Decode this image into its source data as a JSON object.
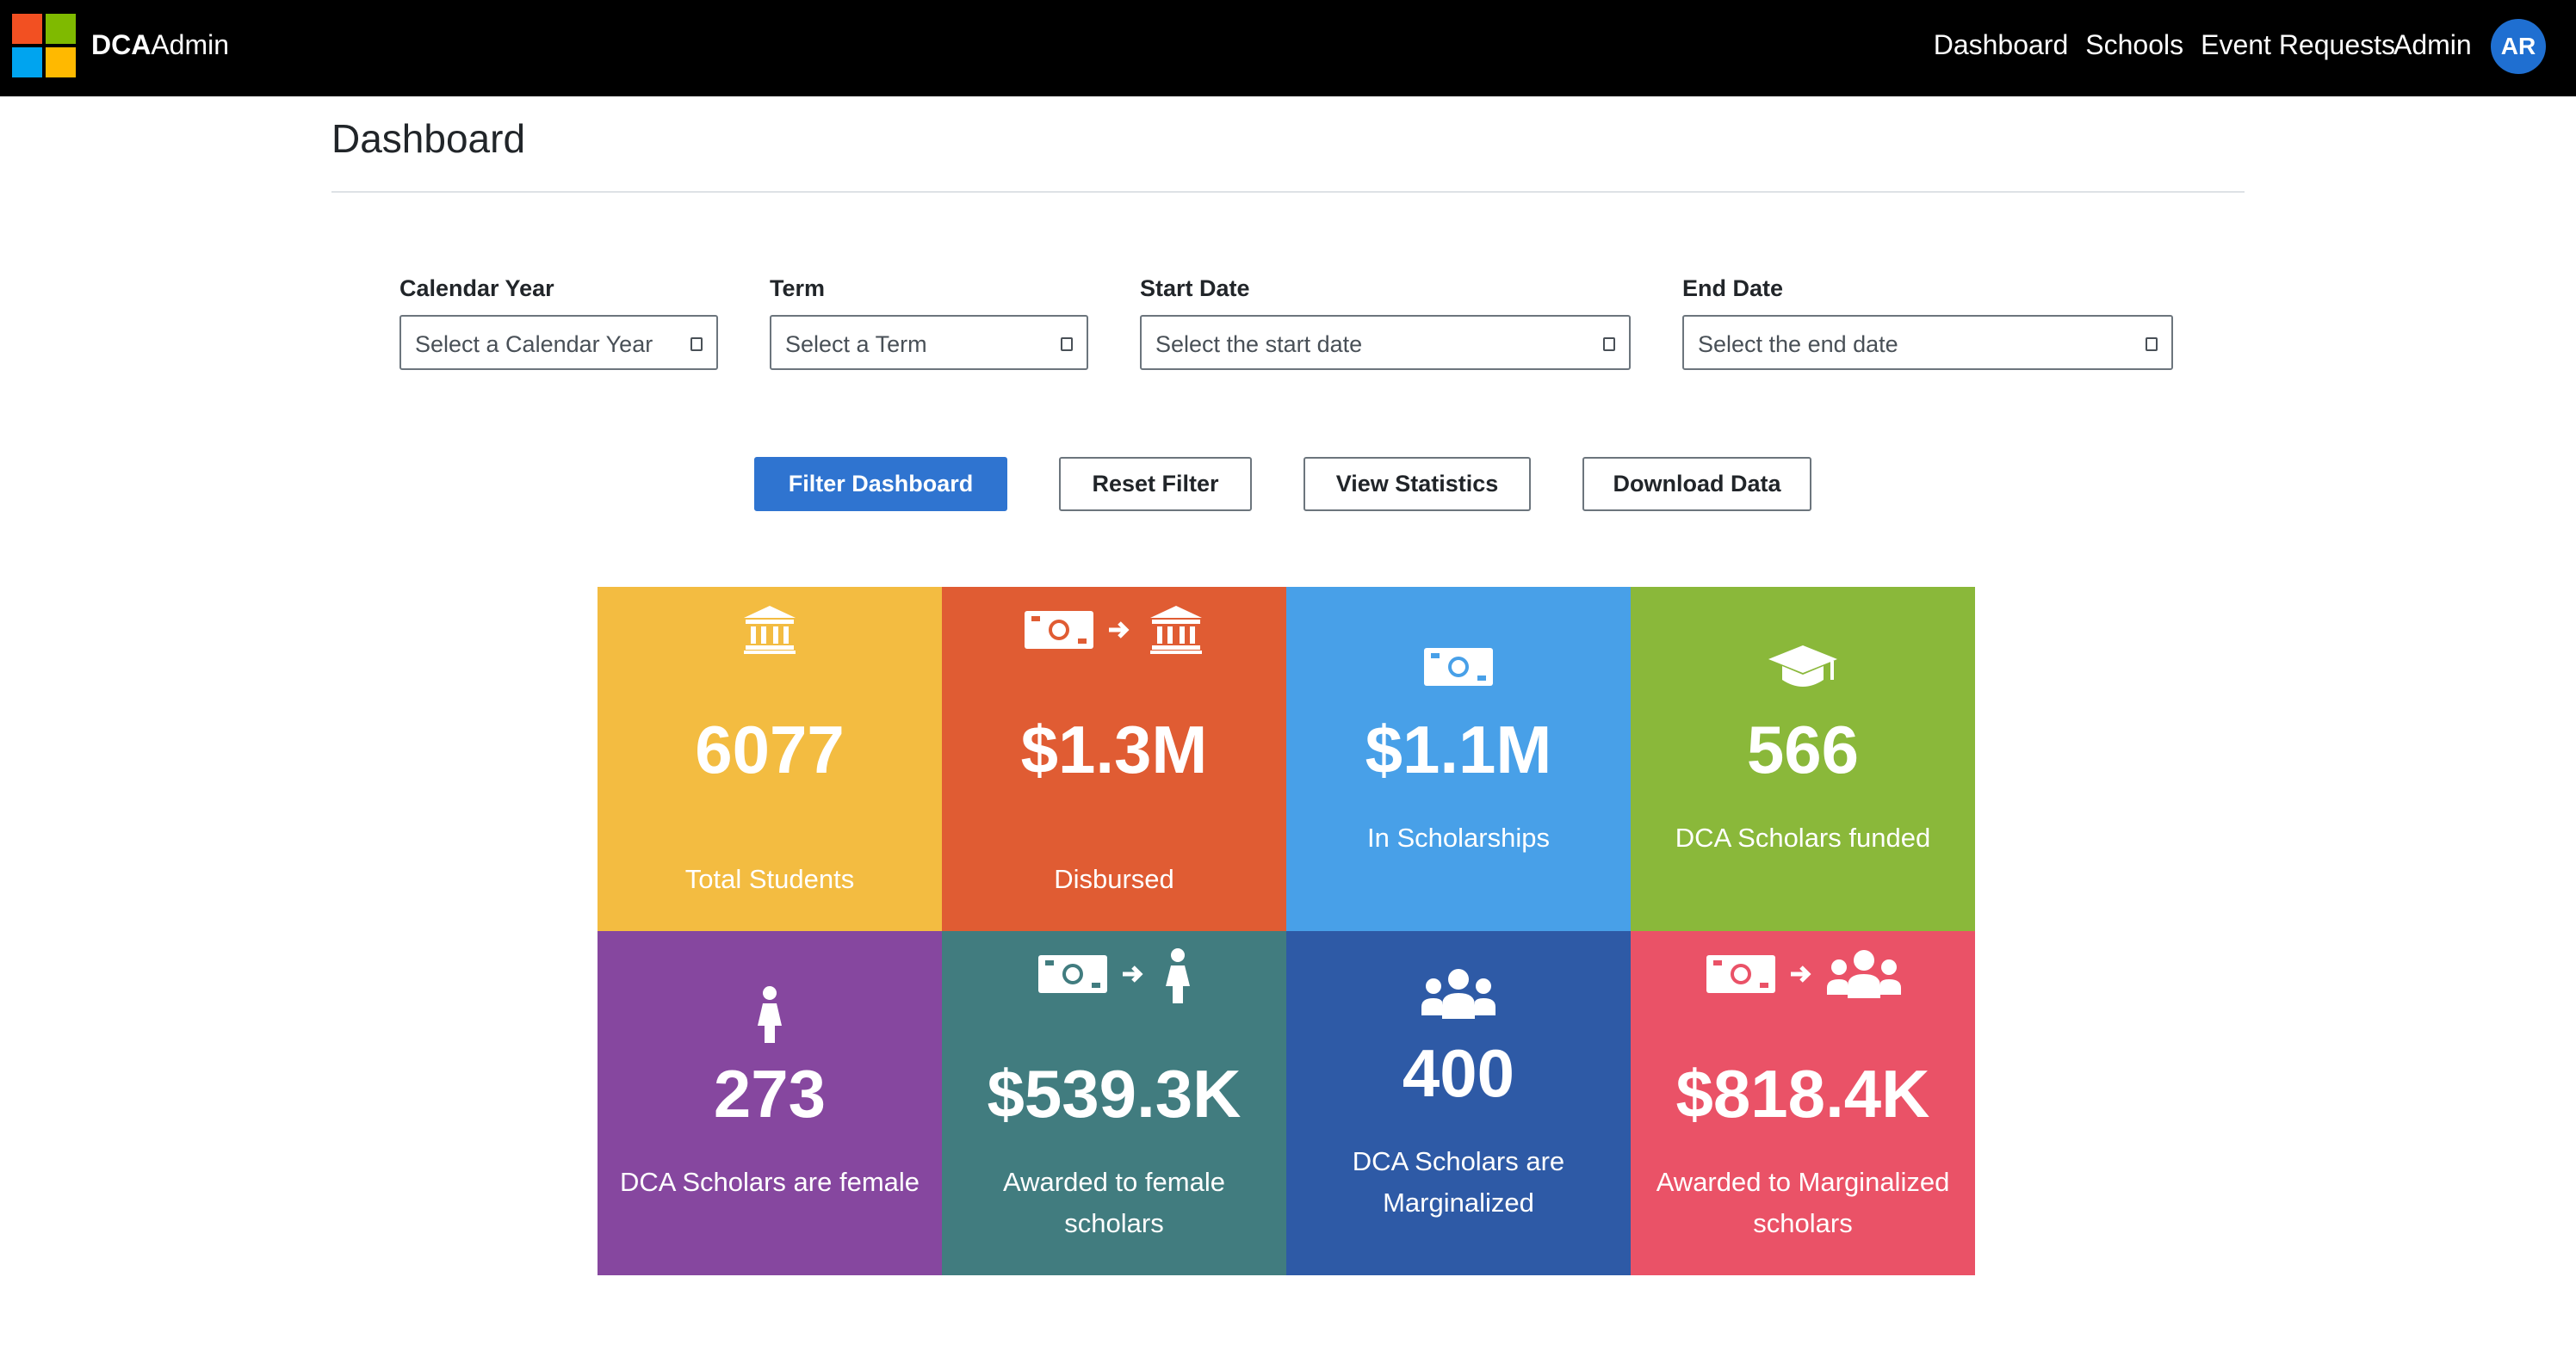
{
  "navbar": {
    "brand_bold": "DCA",
    "brand_rest": "Admin",
    "links": [
      "Dashboard",
      "Schools",
      "Event Requests"
    ],
    "admin_label": "Admin",
    "avatar_initials": "AR"
  },
  "page": {
    "title": "Dashboard"
  },
  "filters": {
    "calendar_year": {
      "label": "Calendar Year",
      "placeholder": "Select a Calendar Year"
    },
    "term": {
      "label": "Term",
      "placeholder": "Select a Term"
    },
    "start_date": {
      "label": "Start Date",
      "placeholder": "Select the start date"
    },
    "end_date": {
      "label": "End Date",
      "placeholder": "Select the end date"
    }
  },
  "actions": {
    "filter": "Filter Dashboard",
    "reset": "Reset Filter",
    "stats": "View Statistics",
    "download": "Download Data"
  },
  "tiles": [
    {
      "value": "6077",
      "label": "Total Students",
      "color": "#f3bc41",
      "icon": "bank-icon"
    },
    {
      "value": "$1.3M",
      "label": "Disbursed",
      "color": "#e05c33",
      "icon": "money-to-bank-icon"
    },
    {
      "value": "$1.1M",
      "label": "In Scholarships",
      "color": "#48a0e8",
      "icon": "money-icon"
    },
    {
      "value": "566",
      "label": "DCA Scholars funded",
      "color": "#8ab83a",
      "icon": "graduation-cap-icon"
    },
    {
      "value": "273",
      "label": "DCA Scholars are female",
      "color": "#86479f",
      "icon": "female-icon"
    },
    {
      "value": "$539.3K",
      "label_line1": "Awarded to female",
      "label_line2": "scholars",
      "color": "#417c7f",
      "icon": "money-to-female-icon"
    },
    {
      "value": "400",
      "label_line1": "DCA Scholars are",
      "label_line2": "Marginalized",
      "color": "#2e5aa6",
      "icon": "group-icon"
    },
    {
      "value": "$818.4K",
      "label_line1": "Awarded to Marginalized",
      "label_line2": "scholars",
      "color": "#ea5267",
      "icon": "money-to-group-icon"
    }
  ]
}
